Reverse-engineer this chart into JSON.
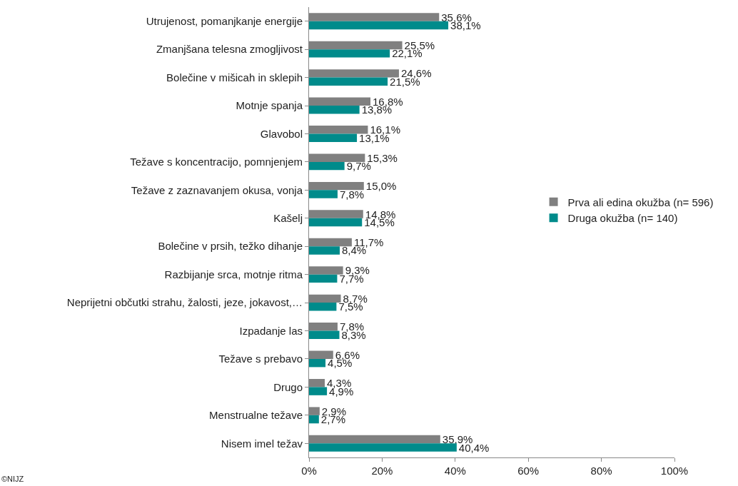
{
  "chart_data": {
    "type": "bar",
    "orientation": "horizontal",
    "categories": [
      "Utrujenost, pomanjkanje energije",
      "Zmanjšana telesna zmogljivost",
      "Bolečine v mišicah in sklepih",
      "Motnje spanja",
      "Glavobol",
      "Težave s koncentracijo, pomnjenjem",
      "Težave z zaznavanjem okusa, vonja",
      "Kašelj",
      "Bolečine v prsih, težko dihanje",
      "Razbijanje srca, motnje ritma",
      "Neprijetni občutki strahu, žalosti, jeze, jokavost,…",
      "Izpadanje las",
      "Težave s prebavo",
      "Drugo",
      "Menstrualne težave",
      "Nisem imel težav"
    ],
    "series": [
      {
        "name": "Prva ali edina okužba (n= 596)",
        "color": "#808080",
        "values": [
          35.6,
          25.5,
          24.6,
          16.8,
          16.1,
          15.3,
          15.0,
          14.8,
          11.7,
          9.3,
          8.7,
          7.8,
          6.6,
          4.3,
          2.9,
          35.9
        ],
        "value_labels": [
          "35,6%",
          "25,5%",
          "24,6%",
          "16,8%",
          "16,1%",
          "15,3%",
          "15,0%",
          "14,8%",
          "11,7%",
          "9,3%",
          "8,7%",
          "7,8%",
          "6,6%",
          "4,3%",
          "2,9%",
          "35,9%"
        ]
      },
      {
        "name": "Druga okužba (n= 140)",
        "color": "#008b8b",
        "values": [
          38.1,
          22.1,
          21.5,
          13.8,
          13.1,
          9.7,
          7.8,
          14.5,
          8.4,
          7.7,
          7.5,
          8.3,
          4.5,
          4.9,
          2.7,
          40.4
        ],
        "value_labels": [
          "38,1%",
          "22,1%",
          "21,5%",
          "13,8%",
          "13,1%",
          "9,7%",
          "7,8%",
          "14,5%",
          "8,4%",
          "7,7%",
          "7,5%",
          "8,3%",
          "4,5%",
          "4,9%",
          "2,7%",
          "40,4%"
        ]
      }
    ],
    "xlim": [
      0,
      100
    ],
    "xticks": [
      {
        "value": 0,
        "label": "0%"
      },
      {
        "value": 20,
        "label": "20%"
      },
      {
        "value": 40,
        "label": "40%"
      },
      {
        "value": 60,
        "label": "60%"
      },
      {
        "value": 80,
        "label": "80%"
      },
      {
        "value": 100,
        "label": "100%"
      }
    ],
    "legend": "right",
    "annotations": [
      "©NIJZ"
    ]
  }
}
